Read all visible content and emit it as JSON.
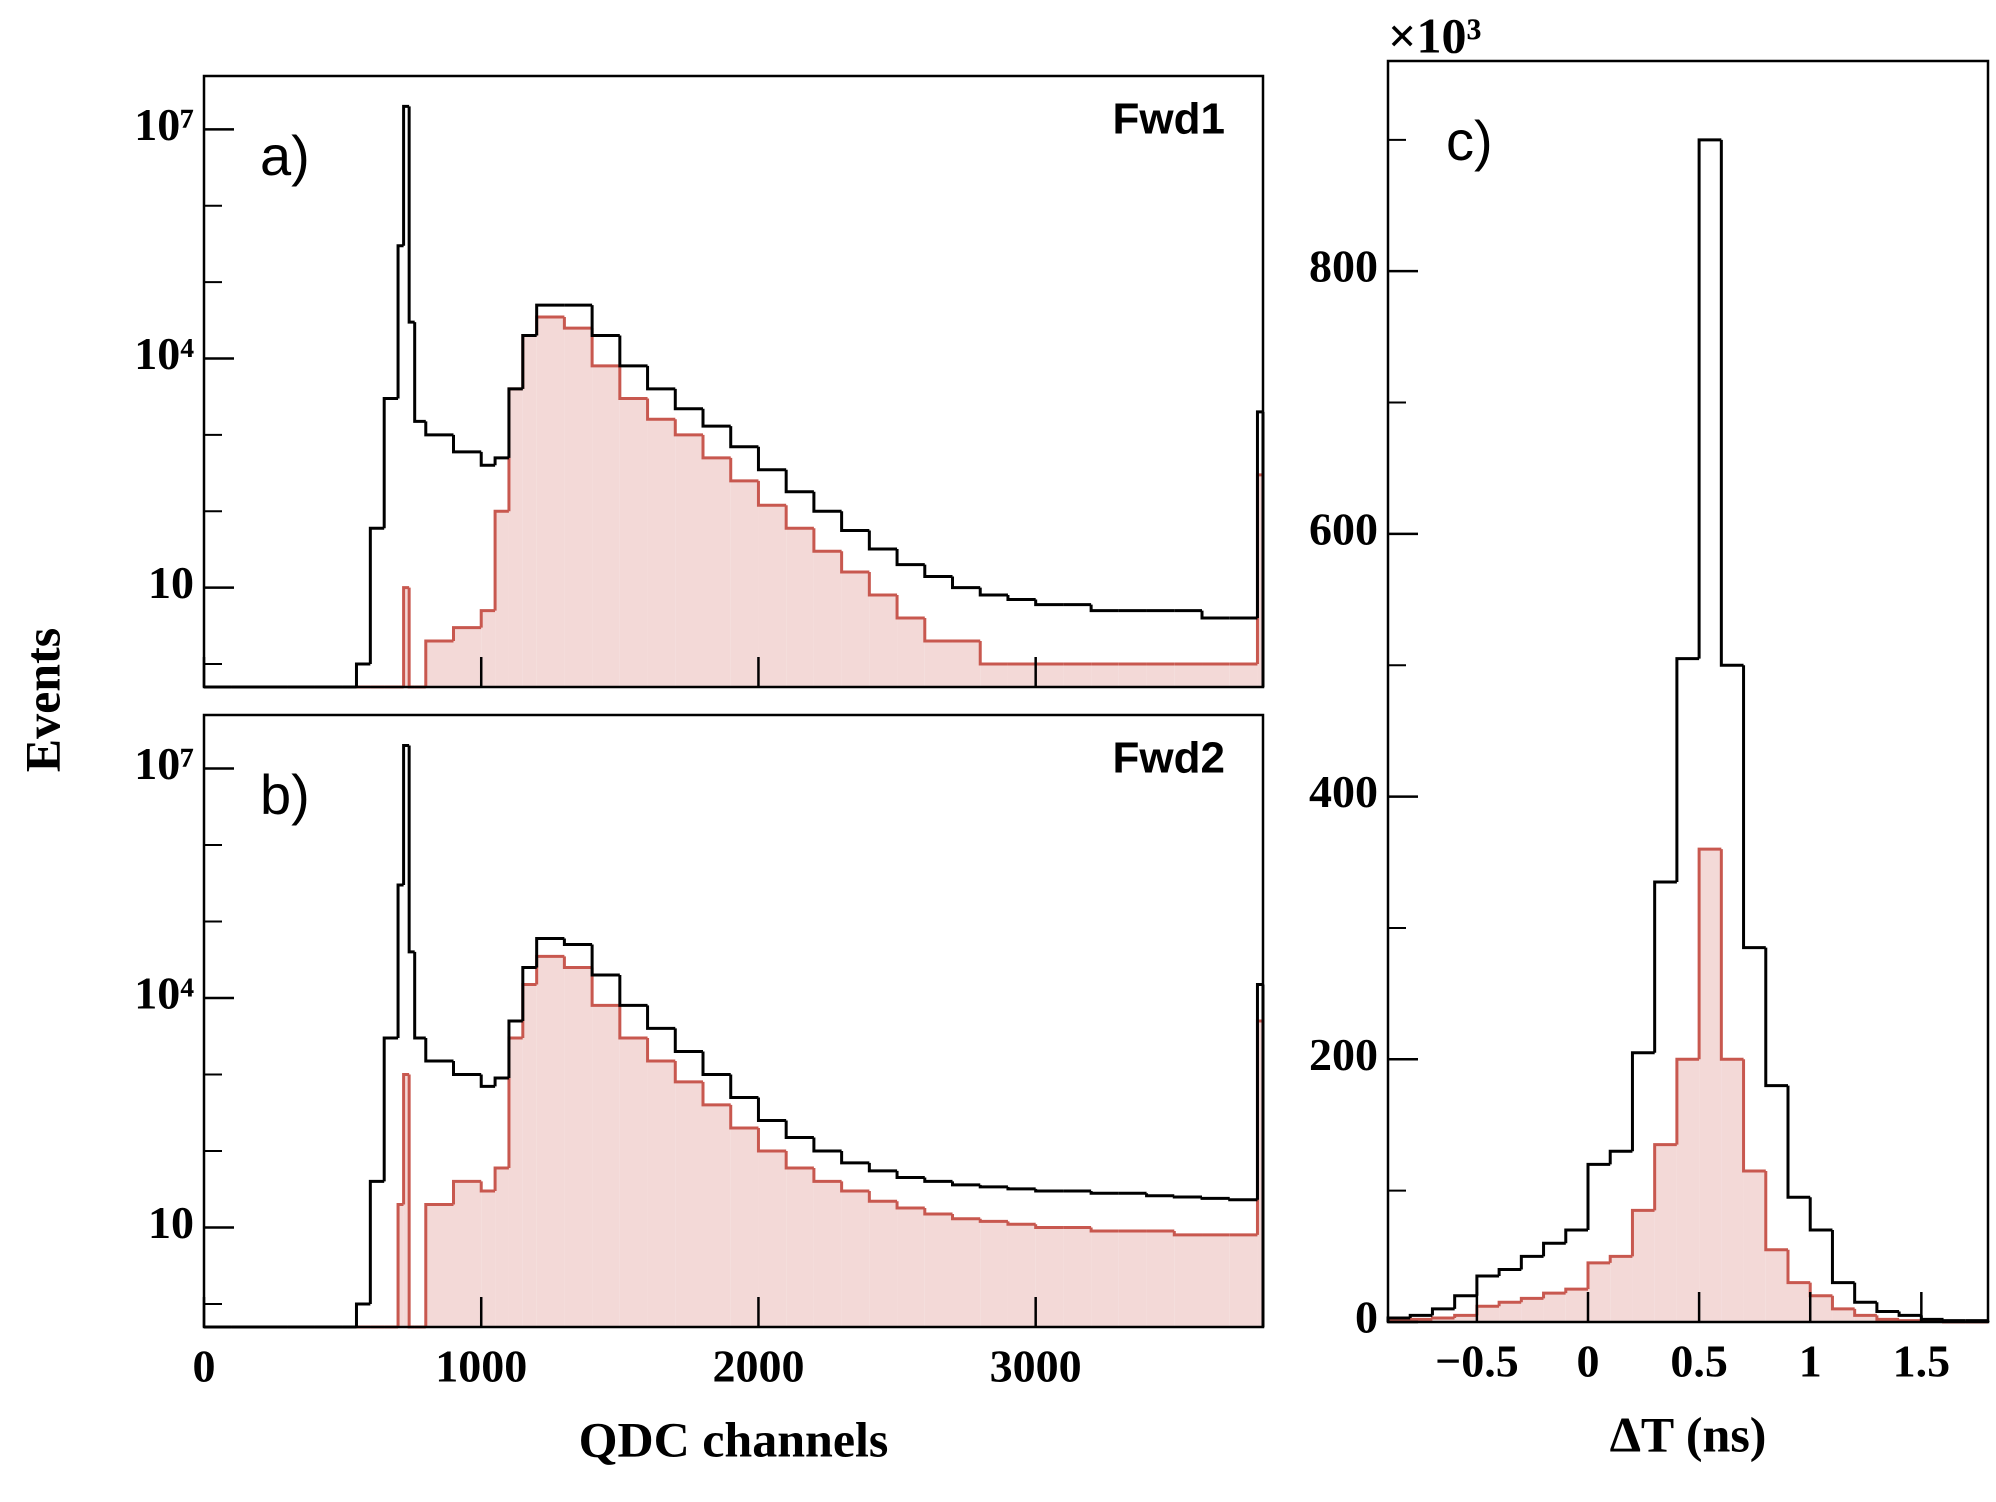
{
  "chart_data": [
    {
      "type": "histogram",
      "panel_label": "a)",
      "annotation": "Fwd1",
      "ylabel": "Events",
      "log_y": true,
      "xtick_labels": false,
      "xlim": [
        0,
        3820
      ],
      "xticks": [
        0,
        1000,
        2000,
        3000
      ],
      "ylim": [
        0.5,
        50000000
      ],
      "yticks": [
        10,
        {
          "value": 10000,
          "label": "10⁴"
        },
        {
          "value": 10000000,
          "label": "10⁷"
        }
      ],
      "yminorticks": [
        1,
        100,
        1000,
        100000,
        1000000
      ],
      "bins": [
        0,
        100,
        200,
        300,
        400,
        500,
        550,
        600,
        650,
        700,
        720,
        740,
        760,
        800,
        900,
        1000,
        1050,
        1100,
        1150,
        1200,
        1300,
        1400,
        1500,
        1600,
        1700,
        1800,
        1900,
        2000,
        2100,
        2200,
        2300,
        2400,
        2500,
        2600,
        2700,
        2800,
        2900,
        3000,
        3100,
        3200,
        3300,
        3400,
        3500,
        3600,
        3700,
        3800,
        3820
      ],
      "series": [
        {
          "color": "#c8584f",
          "fill": "#f3d9d7",
          "values": [
            0,
            0,
            0,
            0,
            0,
            0,
            0,
            0,
            0,
            0,
            10,
            0,
            0,
            2,
            3,
            5,
            100,
            4000,
            20000,
            35000,
            25000,
            8000,
            3000,
            1600,
            1000,
            500,
            250,
            120,
            60,
            30,
            16,
            8,
            4,
            2,
            2,
            1,
            1,
            1,
            1,
            1,
            1,
            1,
            1,
            1,
            1,
            300
          ]
        },
        {
          "color": "#000000",
          "values": [
            0,
            0,
            0,
            0,
            0,
            0,
            1,
            60,
            3000,
            300000,
            20000000,
            30000,
            1500,
            1000,
            600,
            400,
            500,
            4000,
            20000,
            50000,
            50000,
            20000,
            8000,
            4000,
            2200,
            1300,
            700,
            350,
            180,
            100,
            56,
            32,
            20,
            14,
            10,
            8,
            7,
            6,
            6,
            5,
            5,
            5,
            5,
            4,
            4,
            2000
          ]
        }
      ]
    },
    {
      "type": "histogram",
      "panel_label": "b)",
      "annotation": "Fwd2",
      "xlabel": "QDC channels",
      "log_y": true,
      "xlim": [
        0,
        3820
      ],
      "xticks": [
        0,
        1000,
        2000,
        3000
      ],
      "ylim": [
        0.5,
        50000000
      ],
      "yticks": [
        10,
        {
          "value": 10000,
          "label": "10⁴"
        },
        {
          "value": 10000000,
          "label": "10⁷"
        }
      ],
      "yminorticks": [
        1,
        100,
        1000,
        100000,
        1000000
      ],
      "bins": [
        0,
        100,
        200,
        300,
        400,
        500,
        550,
        600,
        650,
        700,
        720,
        740,
        760,
        800,
        900,
        1000,
        1050,
        1100,
        1150,
        1200,
        1300,
        1400,
        1500,
        1600,
        1700,
        1800,
        1900,
        2000,
        2100,
        2200,
        2300,
        2400,
        2500,
        2600,
        2700,
        2800,
        2900,
        3000,
        3100,
        3200,
        3300,
        3400,
        3500,
        3600,
        3700,
        3800,
        3820
      ],
      "series": [
        {
          "color": "#c8584f",
          "fill": "#f3d9d7",
          "values": [
            0,
            0,
            0,
            0,
            0,
            0,
            0,
            0,
            0,
            20,
            1000,
            0,
            0,
            20,
            40,
            30,
            60,
            3000,
            15000,
            35000,
            25000,
            8000,
            3000,
            1500,
            800,
            400,
            200,
            100,
            60,
            40,
            30,
            22,
            18,
            15,
            13,
            12,
            11,
            10,
            10,
            9,
            9,
            9,
            8,
            8,
            8,
            5000
          ]
        },
        {
          "color": "#000000",
          "values": [
            0,
            0,
            0,
            0,
            0,
            0,
            1,
            40,
            3000,
            300000,
            20000000,
            40000,
            3000,
            1500,
            1000,
            700,
            900,
            5000,
            25000,
            60000,
            50000,
            20000,
            8000,
            4000,
            2000,
            1000,
            500,
            250,
            150,
            100,
            70,
            55,
            45,
            40,
            36,
            34,
            32,
            30,
            30,
            28,
            28,
            26,
            25,
            24,
            23,
            15000
          ]
        }
      ]
    },
    {
      "type": "histogram",
      "panel_label": "c)",
      "multiplier": "×10³",
      "xlabel": "ΔT (ns)",
      "log_y": false,
      "xlim": [
        -0.9,
        1.8
      ],
      "xticks": [
        {
          "value": -0.5,
          "label": "−0.5"
        },
        0,
        0.5,
        1,
        1.5
      ],
      "ylim": [
        0,
        960
      ],
      "yticks": [
        0,
        200,
        400,
        600,
        800
      ],
      "yminorticks": [
        100,
        300,
        500,
        700,
        900
      ],
      "bins": [
        -0.9,
        -0.8,
        -0.7,
        -0.6,
        -0.5,
        -0.4,
        -0.3,
        -0.2,
        -0.1,
        0,
        0.1,
        0.2,
        0.3,
        0.4,
        0.5,
        0.6,
        0.7,
        0.8,
        0.9,
        1,
        1.1,
        1.2,
        1.3,
        1.4,
        1.5,
        1.6,
        1.7,
        1.8
      ],
      "series": [
        {
          "color": "#c8584f",
          "fill": "#f3d9d7",
          "values": [
            1,
            2,
            3,
            5,
            12,
            15,
            18,
            22,
            25,
            45,
            50,
            85,
            135,
            200,
            360,
            200,
            115,
            55,
            30,
            20,
            10,
            5,
            2,
            1,
            1,
            0,
            0
          ]
        },
        {
          "color": "#000000",
          "values": [
            3,
            5,
            10,
            20,
            35,
            40,
            50,
            60,
            70,
            120,
            130,
            205,
            335,
            505,
            900,
            500,
            285,
            180,
            95,
            70,
            30,
            15,
            8,
            5,
            2,
            1,
            1
          ]
        }
      ]
    }
  ]
}
